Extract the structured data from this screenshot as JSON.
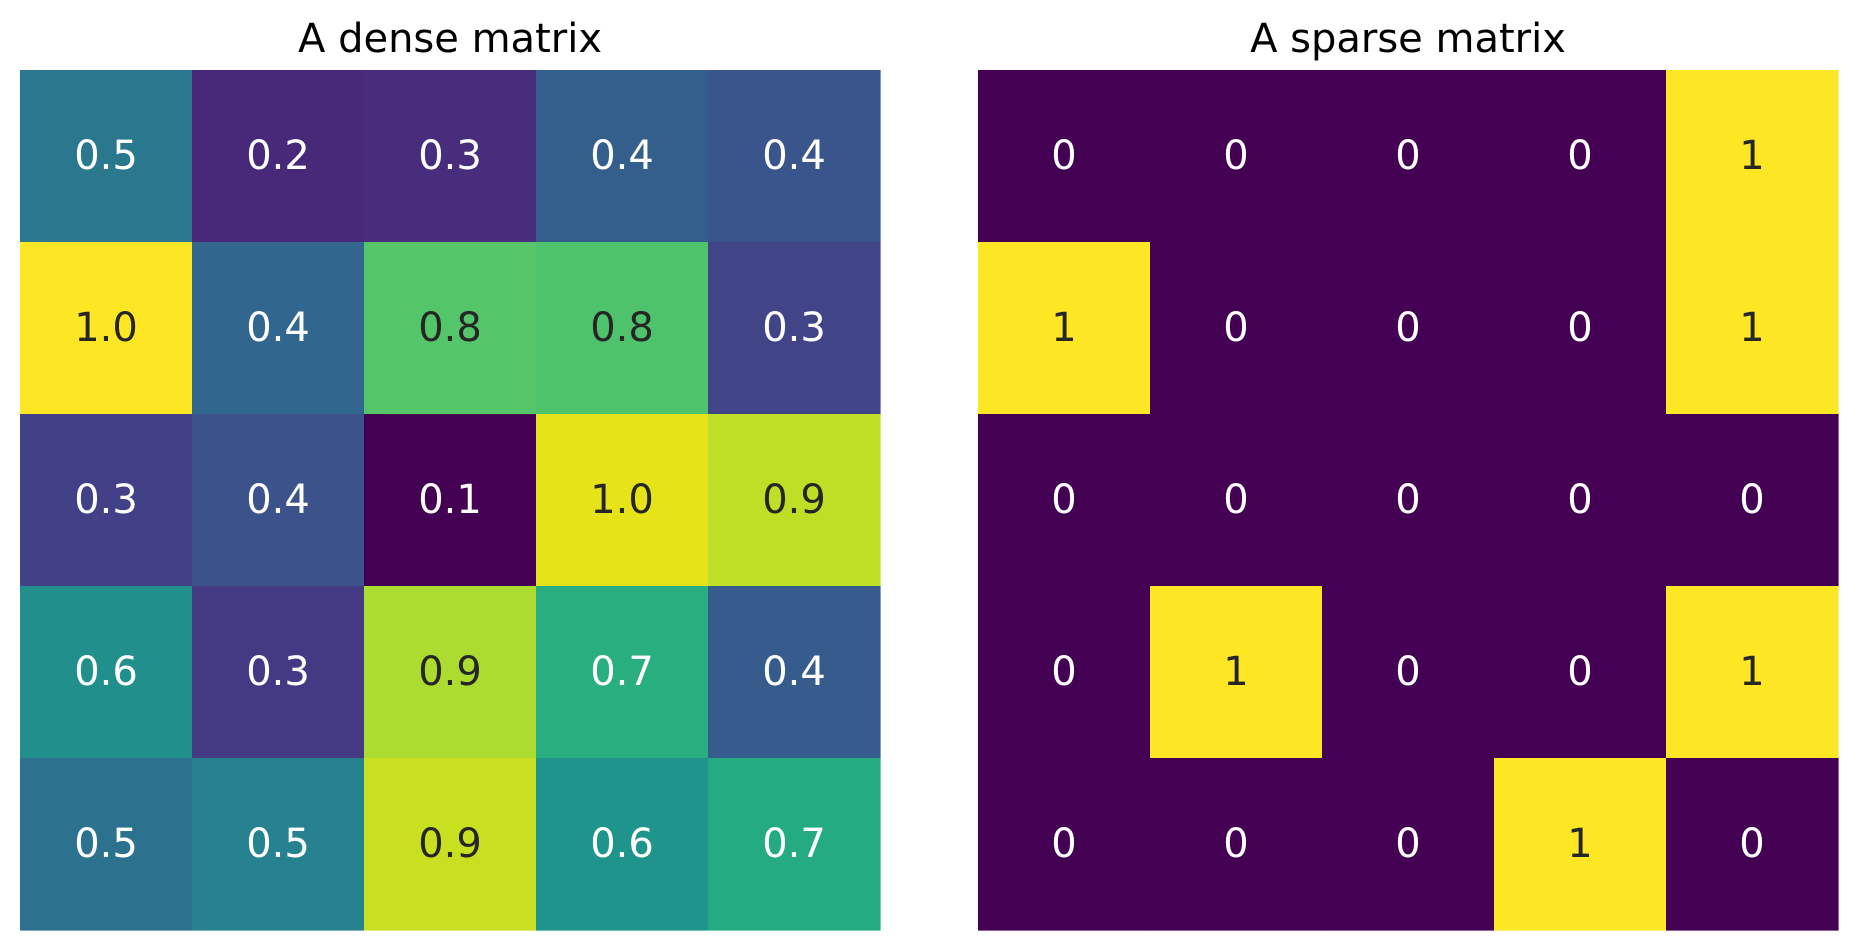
{
  "chart_data": [
    {
      "type": "heatmap",
      "title": "A dense matrix",
      "xlabel": "",
      "ylabel": "",
      "colormap": "viridis",
      "color_range": [
        0.1,
        1.0
      ],
      "rows": 5,
      "cols": 5,
      "values": [
        [
          0.5,
          0.2,
          0.3,
          0.4,
          0.4
        ],
        [
          1.0,
          0.4,
          0.8,
          0.8,
          0.3
        ],
        [
          0.3,
          0.4,
          0.1,
          1.0,
          0.9
        ],
        [
          0.6,
          0.3,
          0.9,
          0.7,
          0.4
        ],
        [
          0.5,
          0.5,
          0.9,
          0.6,
          0.7
        ]
      ],
      "labels": [
        [
          "0.5",
          "0.2",
          "0.3",
          "0.4",
          "0.4"
        ],
        [
          "1.0",
          "0.4",
          "0.8",
          "0.8",
          "0.3"
        ],
        [
          "0.3",
          "0.4",
          "0.1",
          "1.0",
          "0.9"
        ],
        [
          "0.6",
          "0.3",
          "0.9",
          "0.7",
          "0.4"
        ],
        [
          "0.5",
          "0.5",
          "0.9",
          "0.6",
          "0.7"
        ]
      ],
      "colors": [
        [
          "#2a788e",
          "#482878",
          "#472d7b",
          "#345f8d",
          "#3a548c"
        ],
        [
          "#fde725",
          "#31668e",
          "#54c568",
          "#4ec36b",
          "#414487"
        ],
        [
          "#424086",
          "#3b528b",
          "#440154",
          "#e6e419",
          "#bddf26"
        ],
        [
          "#21908c",
          "#443a83",
          "#addc30",
          "#29af7f",
          "#365c8d"
        ],
        [
          "#2c728e",
          "#26828e",
          "#c8e020",
          "#1f948c",
          "#25ab82"
        ]
      ],
      "label_colors": [
        [
          "#ffffff",
          "#ffffff",
          "#ffffff",
          "#ffffff",
          "#ffffff"
        ],
        [
          "#262626",
          "#ffffff",
          "#262626",
          "#262626",
          "#ffffff"
        ],
        [
          "#ffffff",
          "#ffffff",
          "#ffffff",
          "#262626",
          "#262626"
        ],
        [
          "#ffffff",
          "#ffffff",
          "#262626",
          "#ffffff",
          "#ffffff"
        ],
        [
          "#ffffff",
          "#ffffff",
          "#262626",
          "#ffffff",
          "#ffffff"
        ]
      ]
    },
    {
      "type": "heatmap",
      "title": "A sparse matrix",
      "xlabel": "",
      "ylabel": "",
      "colormap": "viridis",
      "color_range": [
        0,
        1
      ],
      "rows": 5,
      "cols": 5,
      "values": [
        [
          0,
          0,
          0,
          0,
          1
        ],
        [
          1,
          0,
          0,
          0,
          1
        ],
        [
          0,
          0,
          0,
          0,
          0
        ],
        [
          0,
          1,
          0,
          0,
          1
        ],
        [
          0,
          0,
          0,
          1,
          0
        ]
      ],
      "labels": [
        [
          "0",
          "0",
          "0",
          "0",
          "1"
        ],
        [
          "1",
          "0",
          "0",
          "0",
          "1"
        ],
        [
          "0",
          "0",
          "0",
          "0",
          "0"
        ],
        [
          "0",
          "1",
          "0",
          "0",
          "1"
        ],
        [
          "0",
          "0",
          "0",
          "1",
          "0"
        ]
      ],
      "colors": [
        [
          "#440154",
          "#440154",
          "#440154",
          "#440154",
          "#fde725"
        ],
        [
          "#fde725",
          "#440154",
          "#440154",
          "#440154",
          "#fde725"
        ],
        [
          "#440154",
          "#440154",
          "#440154",
          "#440154",
          "#440154"
        ],
        [
          "#440154",
          "#fde725",
          "#440154",
          "#440154",
          "#fde725"
        ],
        [
          "#440154",
          "#440154",
          "#440154",
          "#fde725",
          "#440154"
        ]
      ],
      "label_colors": [
        [
          "#ffffff",
          "#ffffff",
          "#ffffff",
          "#ffffff",
          "#262626"
        ],
        [
          "#262626",
          "#ffffff",
          "#ffffff",
          "#ffffff",
          "#262626"
        ],
        [
          "#ffffff",
          "#ffffff",
          "#ffffff",
          "#ffffff",
          "#ffffff"
        ],
        [
          "#ffffff",
          "#262626",
          "#ffffff",
          "#ffffff",
          "#262626"
        ],
        [
          "#ffffff",
          "#ffffff",
          "#ffffff",
          "#262626",
          "#ffffff"
        ]
      ]
    }
  ]
}
